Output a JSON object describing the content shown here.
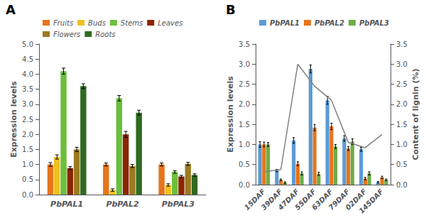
{
  "chart_data": [
    {
      "type": "bar",
      "annotation": "A",
      "categories": [
        "PbPAL1",
        "PbPAL2",
        "PbPAL3"
      ],
      "series": [
        {
          "name": "Fruits",
          "color": "#E8741A",
          "values": [
            1.0,
            1.0,
            1.0
          ],
          "errors": [
            0.06,
            0.05,
            0.05
          ]
        },
        {
          "name": "Buds",
          "color": "#F0C020",
          "values": [
            1.25,
            0.15,
            0.32
          ],
          "errors": [
            0.07,
            0.04,
            0.04
          ]
        },
        {
          "name": "Stems",
          "color": "#6BBF3C",
          "values": [
            4.1,
            3.2,
            0.75
          ],
          "errors": [
            0.1,
            0.09,
            0.04
          ]
        },
        {
          "name": "Leaves",
          "color": "#8B2500",
          "values": [
            0.88,
            2.0,
            0.6
          ],
          "errors": [
            0.05,
            0.1,
            0.04
          ]
        },
        {
          "name": "Flowers",
          "color": "#9B7A20",
          "values": [
            1.5,
            0.95,
            1.02
          ],
          "errors": [
            0.07,
            0.05,
            0.05
          ]
        },
        {
          "name": "Roots",
          "color": "#2E6B20",
          "values": [
            3.6,
            2.72,
            0.65
          ],
          "errors": [
            0.08,
            0.08,
            0.04
          ]
        }
      ],
      "ylim": [
        0,
        5
      ],
      "yticks": [
        {
          "value": 0,
          "label": "0.0"
        },
        0.5,
        {
          "value": 1.0,
          "label": "1.0"
        },
        1.5,
        {
          "value": 2.0,
          "label": "2.0"
        },
        2.5,
        {
          "value": 3.0,
          "label": "3.0"
        },
        3.5,
        {
          "value": 4.0,
          "label": "4.0"
        },
        4.5,
        {
          "value": 5.0,
          "label": "5.0"
        }
      ],
      "ylabel": "Expression levels",
      "legend": "upper left",
      "grid": false
    },
    {
      "type": "bar",
      "annotation": "B",
      "categories": [
        "15DAF",
        "39DAF",
        "47DAF",
        "55DAF",
        "63DAF",
        "79DAF",
        "02DAF",
        "145DAF"
      ],
      "series": [
        {
          "name": "PbPAL1",
          "color": "#5B9BD5",
          "values": [
            1.0,
            0.35,
            1.1,
            2.88,
            2.1,
            1.15,
            0.88,
            0.06
          ],
          "errors": [
            0.07,
            0.03,
            0.07,
            0.1,
            0.1,
            0.07,
            0.05,
            0.02
          ]
        },
        {
          "name": "PbPAL2",
          "color": "#E8741A",
          "values": [
            1.0,
            0.12,
            0.52,
            1.42,
            1.45,
            0.9,
            0.15,
            0.18
          ],
          "errors": [
            0.06,
            0.02,
            0.05,
            0.08,
            0.08,
            0.05,
            0.03,
            0.03
          ]
        },
        {
          "name": "PbPAL3",
          "color": "#70AD47",
          "values": [
            1.0,
            0.05,
            0.28,
            0.27,
            0.95,
            1.07,
            0.28,
            0.12
          ],
          "errors": [
            0.05,
            0.02,
            0.04,
            0.04,
            0.05,
            0.07,
            0.04,
            0.02
          ]
        },
        {
          "type": "line",
          "axis": "y2",
          "color": "#808080",
          "values": [
            0.32,
            0.38,
            3.0,
            2.45,
            2.1,
            1.05,
            0.92,
            1.25
          ]
        }
      ],
      "ylim": [
        0,
        3.5
      ],
      "yticks": [
        {
          "value": 0,
          "label": "0.0"
        },
        0.5,
        {
          "value": 1.0,
          "label": "1.0"
        },
        1.5,
        {
          "value": 2.0,
          "label": "2.0"
        },
        2.5,
        {
          "value": 3.0,
          "label": "3.0"
        },
        3.5
      ],
      "ylabel": "Expression levels",
      "y2lim": [
        0,
        3.5
      ],
      "y2ticks": [
        {
          "value": 0,
          "label": "0.0"
        },
        0.5,
        {
          "value": 1.0,
          "label": "1.0"
        },
        1.5,
        {
          "value": 2.0,
          "label": "2.0"
        },
        2.5,
        {
          "value": 3.0,
          "label": "3.0"
        },
        3.5
      ],
      "y2label": "Content of lignin (%)",
      "legend": "upper left",
      "grid": false
    }
  ]
}
